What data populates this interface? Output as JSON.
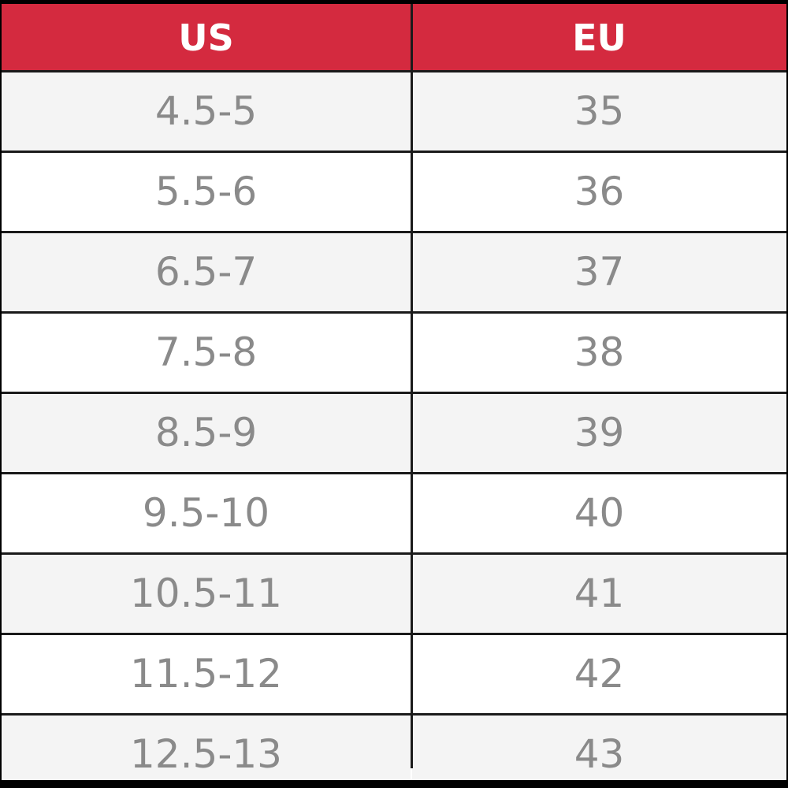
{
  "table": {
    "header": [
      "US",
      "EU"
    ],
    "rows": [
      [
        "4.5-5",
        "35"
      ],
      [
        "5.5-6",
        "36"
      ],
      [
        "6.5-7",
        "37"
      ],
      [
        "7.5-8",
        "38"
      ],
      [
        "8.5-9",
        "39"
      ],
      [
        "9.5-10",
        "40"
      ],
      [
        "10.5-11",
        "41"
      ],
      [
        "11.5-12",
        "42"
      ],
      [
        "12.5-13",
        "43"
      ]
    ]
  }
}
